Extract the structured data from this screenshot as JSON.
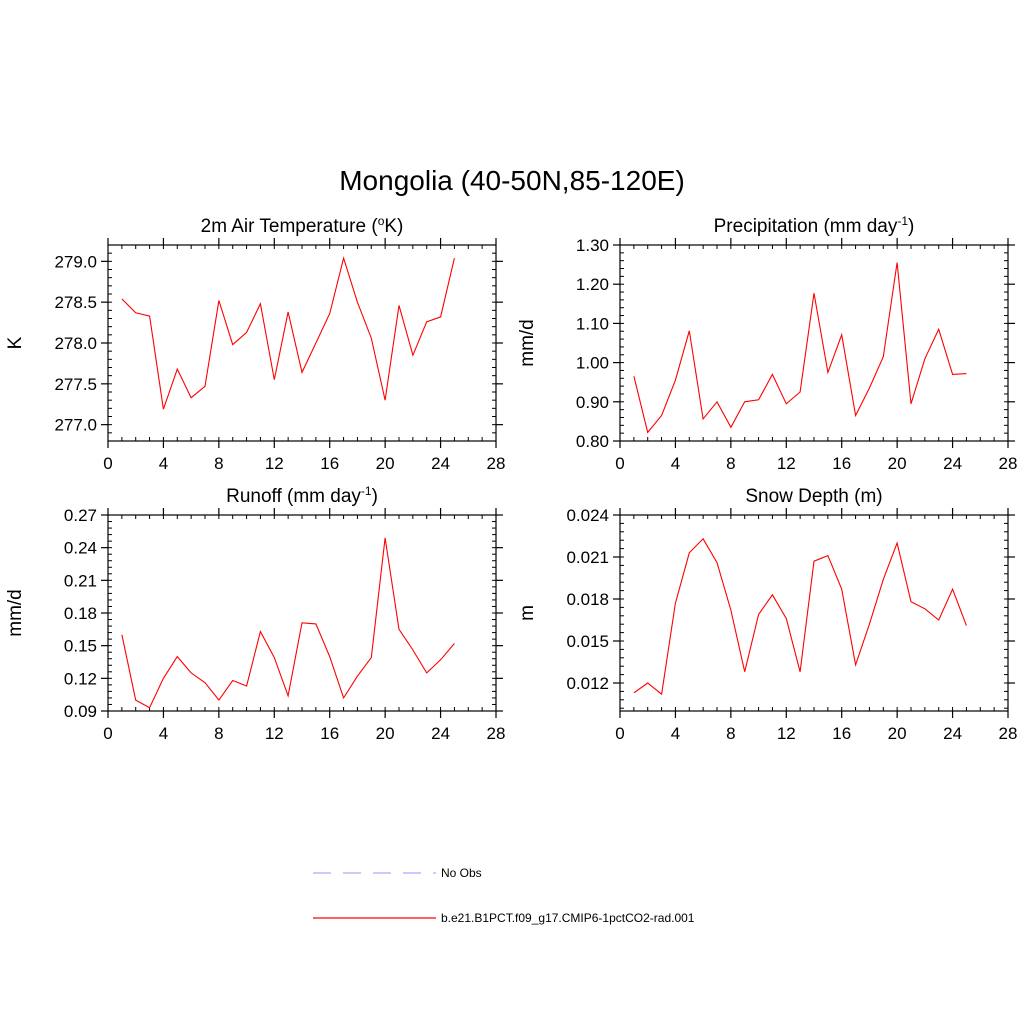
{
  "title": "Mongolia (40-50N,85-120E)",
  "chart_data": [
    {
      "type": "line",
      "title_main": "2m Air Temperature (",
      "title_sup": "o",
      "title_tail": "K)",
      "ylabel": "K",
      "xlim": [
        0,
        28
      ],
      "ylim": [
        276.8,
        279.2
      ],
      "xticks": [
        "0",
        "4",
        "8",
        "12",
        "16",
        "20",
        "24",
        "28"
      ],
      "yticks": [
        "277.0",
        "277.5",
        "278.0",
        "278.5",
        "279.0"
      ],
      "series": [
        {
          "color": "#ff0000",
          "x": [
            1,
            2,
            3,
            4,
            5,
            6,
            7,
            8,
            9,
            10,
            11,
            12,
            13,
            14,
            15,
            16,
            17,
            18,
            19,
            20,
            21,
            22,
            23,
            24,
            25
          ],
          "values": [
            278.54,
            278.37,
            278.33,
            277.19,
            277.68,
            277.33,
            277.47,
            278.52,
            277.98,
            278.13,
            278.48,
            277.55,
            278.38,
            277.64,
            278.0,
            278.36,
            279.04,
            278.5,
            278.06,
            277.3,
            278.46,
            277.85,
            278.26,
            278.32,
            279.04
          ]
        }
      ]
    },
    {
      "type": "line",
      "title_main": "Precipitation (mm day",
      "title_sup": "-1",
      "title_tail": ")",
      "ylabel": "mm/d",
      "xlim": [
        0,
        28
      ],
      "ylim": [
        0.8,
        1.3
      ],
      "xticks": [
        "0",
        "4",
        "8",
        "12",
        "16",
        "20",
        "24",
        "28"
      ],
      "yticks": [
        "0.80",
        "0.90",
        "1.00",
        "1.10",
        "1.20",
        "1.30"
      ],
      "series": [
        {
          "color": "#ff0000",
          "x": [
            1,
            2,
            3,
            4,
            5,
            6,
            7,
            8,
            9,
            10,
            11,
            12,
            13,
            14,
            15,
            16,
            17,
            18,
            19,
            20,
            21,
            22,
            23,
            24,
            25
          ],
          "values": [
            0.965,
            0.822,
            0.865,
            0.955,
            1.081,
            0.856,
            0.9,
            0.835,
            0.9,
            0.905,
            0.97,
            0.895,
            0.925,
            1.177,
            0.975,
            1.071,
            0.865,
            0.935,
            1.015,
            1.255,
            0.895,
            1.01,
            1.085,
            0.97,
            0.972
          ]
        }
      ]
    },
    {
      "type": "line",
      "title_main": "Runoff (mm day",
      "title_sup": "-1",
      "title_tail": ")",
      "ylabel": "mm/d",
      "xlim": [
        0,
        28
      ],
      "ylim": [
        0.09,
        0.27
      ],
      "xticks": [
        "0",
        "4",
        "8",
        "12",
        "16",
        "20",
        "24",
        "28"
      ],
      "yticks": [
        "0.09",
        "0.12",
        "0.15",
        "0.18",
        "0.21",
        "0.24",
        "0.27"
      ],
      "series": [
        {
          "color": "#ff0000",
          "x": [
            1,
            2,
            3,
            4,
            5,
            6,
            7,
            8,
            9,
            10,
            11,
            12,
            13,
            14,
            15,
            16,
            17,
            18,
            19,
            20,
            21,
            22,
            23,
            24,
            25
          ],
          "values": [
            0.16,
            0.1,
            0.093,
            0.12,
            0.14,
            0.125,
            0.116,
            0.1,
            0.118,
            0.113,
            0.163,
            0.139,
            0.104,
            0.171,
            0.17,
            0.14,
            0.102,
            0.122,
            0.139,
            0.249,
            0.165,
            0.146,
            0.125,
            0.137,
            0.152
          ]
        }
      ]
    },
    {
      "type": "line",
      "title_main": "Snow Depth (m)",
      "title_sup": "",
      "title_tail": "",
      "ylabel": "m",
      "xlim": [
        0,
        28
      ],
      "ylim": [
        0.01,
        0.024
      ],
      "xticks": [
        "0",
        "4",
        "8",
        "12",
        "16",
        "20",
        "24",
        "28"
      ],
      "yticks": [
        "0.012",
        "0.015",
        "0.018",
        "0.021",
        "0.024"
      ],
      "series": [
        {
          "color": "#ff0000",
          "x": [
            1,
            2,
            3,
            4,
            5,
            6,
            7,
            8,
            9,
            10,
            11,
            12,
            13,
            14,
            15,
            16,
            17,
            18,
            19,
            20,
            21,
            22,
            23,
            24,
            25
          ],
          "values": [
            0.0113,
            0.012,
            0.0112,
            0.0177,
            0.0213,
            0.0223,
            0.0206,
            0.0172,
            0.0128,
            0.0169,
            0.0183,
            0.0166,
            0.0128,
            0.0207,
            0.0211,
            0.0187,
            0.0133,
            0.0162,
            0.0194,
            0.022,
            0.0178,
            0.0173,
            0.0165,
            0.0187,
            0.0161
          ]
        }
      ]
    }
  ],
  "legend": [
    {
      "label": "No Obs",
      "style": "dashed",
      "color": "#aaaaff"
    },
    {
      "label": "b.e21.B1PCT.f09_g17.CMIP6-1pctCO2-rad.001",
      "style": "solid",
      "color": "#ff0000"
    }
  ]
}
